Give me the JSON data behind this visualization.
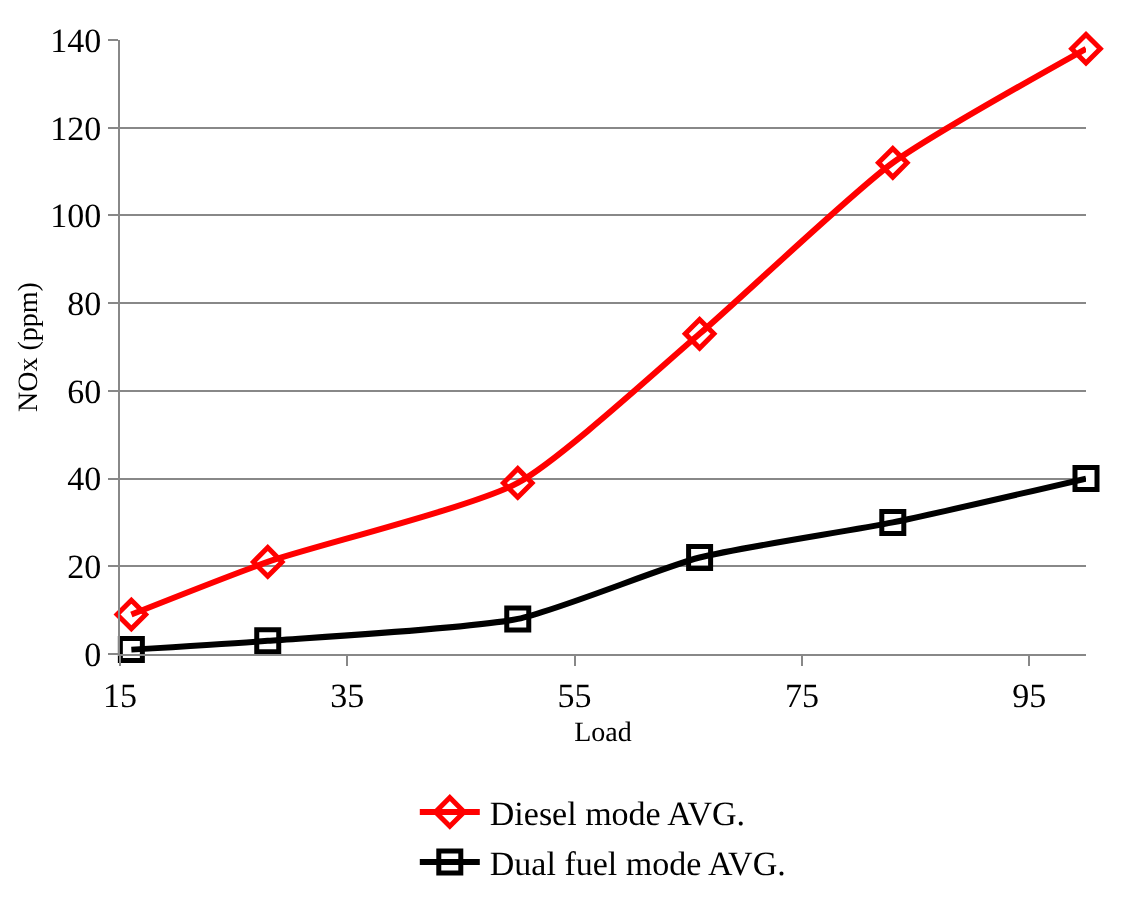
{
  "chart_data": {
    "type": "line",
    "xlabel": "Load",
    "ylabel": "NOx (ppm)",
    "x": [
      16,
      28,
      50,
      66,
      83,
      100
    ],
    "series": [
      {
        "name": "Diesel mode AVG.",
        "color": "#ff0000",
        "values": [
          9,
          21,
          39,
          73,
          112,
          138
        ],
        "marker": "diamond"
      },
      {
        "name": "Dual fuel mode AVG.",
        "color": "#000000",
        "values": [
          1,
          3,
          8,
          22,
          30,
          40
        ],
        "marker": "square"
      }
    ],
    "xlim": [
      15,
      100
    ],
    "xticks": [
      15,
      35,
      55,
      75,
      95
    ],
    "ylim": [
      0,
      140
    ],
    "yticks": [
      0,
      20,
      40,
      60,
      80,
      100,
      120,
      140
    ],
    "grid": "y",
    "legend": "bottom",
    "line_style": "solid"
  }
}
